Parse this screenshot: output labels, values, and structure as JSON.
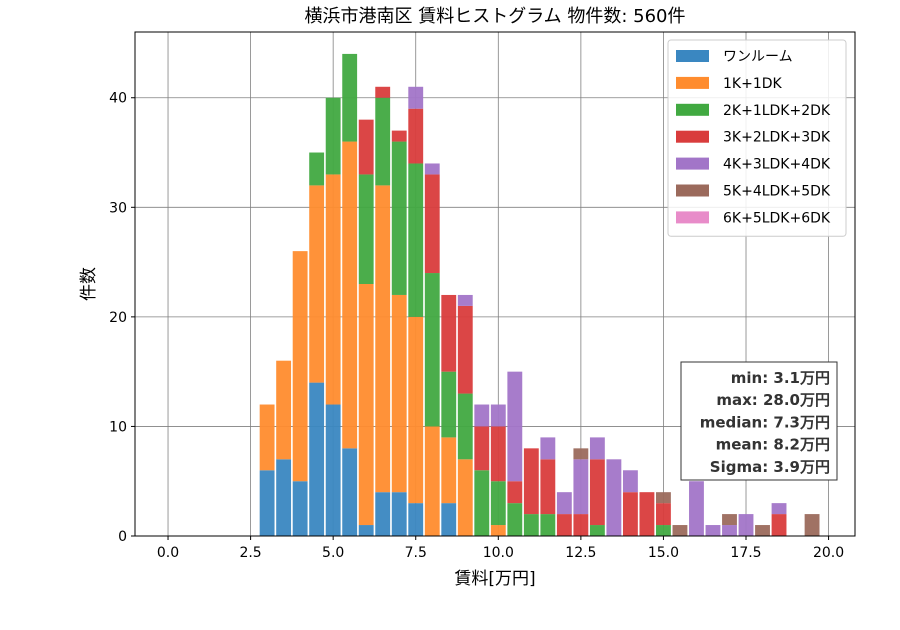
{
  "chart_data": {
    "type": "bar",
    "stacked": true,
    "title": "横浜市港南区 賃料ヒストグラム  物件数: 560件",
    "xlabel": "賃料[万円]",
    "ylabel": "件数",
    "xlim": [
      -1.0,
      20.8
    ],
    "ylim": [
      0,
      46
    ],
    "bin_width": 0.5,
    "grid": true,
    "legend_position": "top-right",
    "x_ticks": [
      "0.0",
      "2.5",
      "5.0",
      "7.5",
      "10.0",
      "12.5",
      "15.0",
      "17.5",
      "20.0"
    ],
    "y_ticks": [
      "0",
      "10",
      "20",
      "30",
      "40"
    ],
    "x": [
      3.0,
      3.5,
      4.0,
      4.5,
      5.0,
      5.5,
      6.0,
      6.5,
      7.0,
      7.5,
      8.0,
      8.5,
      9.0,
      9.5,
      10.0,
      10.5,
      11.0,
      11.5,
      12.0,
      12.5,
      13.0,
      13.5,
      14.0,
      14.5,
      15.0,
      15.5,
      16.0,
      16.5,
      17.0,
      17.5,
      18.0,
      18.5,
      19.0,
      19.5
    ],
    "series": [
      {
        "name": "ワンルーム",
        "color": "#3a87c1",
        "values": [
          6,
          7,
          5,
          14,
          12,
          8,
          1,
          4,
          4,
          3,
          0,
          3,
          0,
          0,
          0,
          0,
          0,
          0,
          0,
          0,
          0,
          0,
          0,
          0,
          0,
          0,
          0,
          0,
          0,
          0,
          0,
          0,
          0,
          0
        ]
      },
      {
        "name": "1K+1DK",
        "color": "#ff8c2e",
        "values": [
          6,
          9,
          21,
          18,
          21,
          28,
          22,
          28,
          18,
          17,
          10,
          6,
          7,
          0,
          1,
          0,
          0,
          0,
          0,
          0,
          0,
          0,
          0,
          0,
          0,
          0,
          0,
          0,
          0,
          0,
          0,
          0,
          0,
          0
        ]
      },
      {
        "name": "2K+1LDK+2DK",
        "color": "#41a941",
        "values": [
          0,
          0,
          0,
          3,
          7,
          8,
          10,
          8,
          14,
          14,
          14,
          6,
          6,
          6,
          4,
          3,
          2,
          2,
          0,
          0,
          1,
          0,
          0,
          0,
          1,
          0,
          0,
          0,
          0,
          0,
          0,
          0,
          0,
          0
        ]
      },
      {
        "name": "3K+2LDK+3DK",
        "color": "#d93c3c",
        "values": [
          0,
          0,
          0,
          0,
          0,
          0,
          5,
          1,
          1,
          5,
          9,
          7,
          8,
          4,
          5,
          2,
          6,
          5,
          2,
          2,
          6,
          0,
          4,
          4,
          2,
          0,
          0,
          0,
          0,
          0,
          0,
          2,
          0,
          0
        ]
      },
      {
        "name": "4K+3LDK+4DK",
        "color": "#a275c8",
        "values": [
          0,
          0,
          0,
          0,
          0,
          0,
          0,
          0,
          0,
          2,
          1,
          0,
          1,
          2,
          2,
          10,
          0,
          2,
          2,
          5,
          2,
          7,
          2,
          0,
          0,
          0,
          5,
          1,
          1,
          2,
          0,
          1,
          0,
          0
        ]
      },
      {
        "name": "5K+4LDK+5DK",
        "color": "#9b6a5c",
        "values": [
          0,
          0,
          0,
          0,
          0,
          0,
          0,
          0,
          0,
          0,
          0,
          0,
          0,
          0,
          0,
          0,
          0,
          0,
          0,
          1,
          0,
          0,
          0,
          0,
          1,
          1,
          0,
          0,
          1,
          0,
          1,
          0,
          0,
          2
        ]
      },
      {
        "name": "6K+5LDK+6DK",
        "color": "#e88cc9",
        "values": [
          0,
          0,
          0,
          0,
          0,
          0,
          0,
          0,
          0,
          0,
          0,
          0,
          0,
          0,
          0,
          0,
          0,
          0,
          0,
          0,
          0,
          0,
          0,
          0,
          0,
          0,
          0,
          0,
          0,
          0,
          0,
          0,
          0,
          0
        ]
      }
    ],
    "stats_box": [
      "min: 3.1万円",
      "max: 28.0万円",
      "median: 7.3万円",
      "mean: 8.2万円",
      "Sigma: 3.9万円"
    ]
  }
}
